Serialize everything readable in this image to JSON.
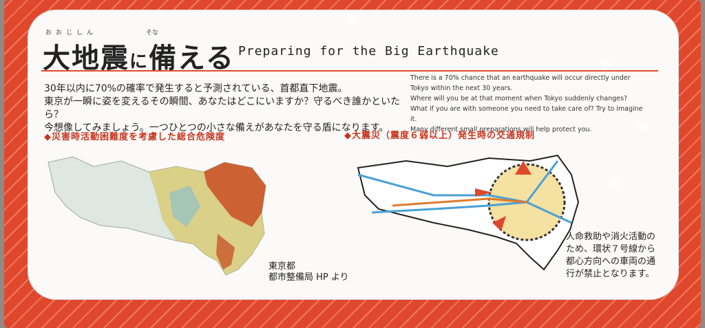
{
  "title": {
    "jp_main": "大地震",
    "jp_particle": "に",
    "jp_tail": "備える",
    "ruby_1": "おおじしん",
    "ruby_2": "そな",
    "en": "Preparing for the Big Earthquake"
  },
  "body_jp": [
    "30年以内に70%の確率で発生すると予測されている、首都直下地震。",
    "東京が一瞬に姿を変えるその瞬間、あなたはどこにいますか？守るべき誰かといたら？",
    "今想像してみましょう。一つひとつの小さな備えがあなたを守る盾になります。"
  ],
  "body_en": [
    "There is a 70% chance that an earthquake will occur directly under",
    "Tokyo within the next 30 years.",
    "Where will you be at that moment when Tokyo suddenly changes?",
    "What if you are with someone you need to take care of? Try to imagine it.",
    "Many different small preparations will help protect you."
  ],
  "section_left": "◆災害時活動困難度を考慮した総合危険度",
  "section_right": "◆大震災（震度６弱以上）発生時の交通規制",
  "credit": [
    "東京都",
    "都市整備局 HP より"
  ],
  "note": [
    "人命救助や消火活動の",
    "ため、環状７号線から",
    "都心方向への車両の通",
    "行が禁止となります。"
  ],
  "colors": {
    "frame": "#e0482e",
    "accent": "#c8341e"
  }
}
